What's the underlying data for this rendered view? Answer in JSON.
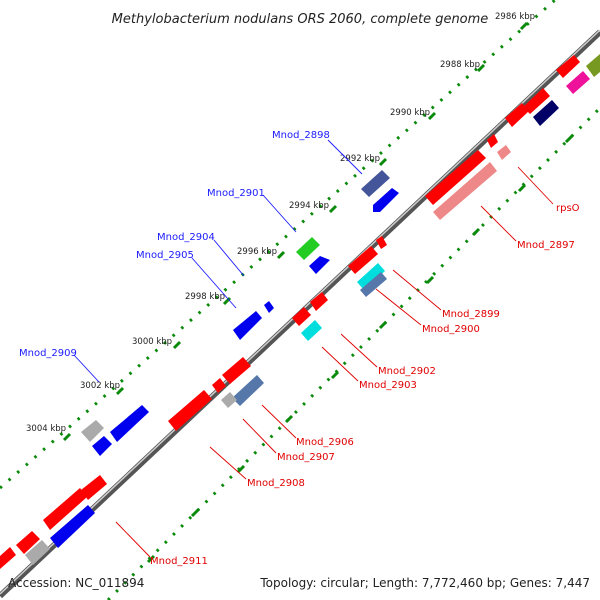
{
  "title": "Methylobacterium nodulans ORS 2060, complete genome",
  "footer": {
    "accession": "Accession: NC_011894",
    "summary": "Topology: circular; Length: 7,772,460 bp; Genes: 7,447"
  },
  "ticks": [
    "2986 kbp",
    "2988 kbp",
    "2990 kbp",
    "2992 kbp",
    "2994 kbp",
    "2996 kbp",
    "2998 kbp",
    "3000 kbp",
    "3002 kbp",
    "3004 kbp"
  ],
  "labels_left": [
    "Mnod_2898",
    "Mnod_2901",
    "Mnod_2904",
    "Mnod_2905",
    "Mnod_2909"
  ],
  "labels_right": [
    "rpsO",
    "Mnod_2897",
    "Mnod_2899",
    "Mnod_2900",
    "Mnod_2902",
    "Mnod_2903",
    "Mnod_2906",
    "Mnod_2907",
    "Mnod_2908",
    "Mnod_2911"
  ],
  "colors": {
    "axis": "#888888",
    "tick_dots": "#0a8a0a",
    "red": "#ff0000",
    "blue": "#0000ee",
    "pink": "#ee8888",
    "gray": "#aaaaaa",
    "green": "#22cc22",
    "cyan": "#00dddd",
    "navy": "#000066",
    "slate": "#445599",
    "magenta": "#ee1199",
    "olive": "#779922",
    "steel": "#5577aa"
  }
}
